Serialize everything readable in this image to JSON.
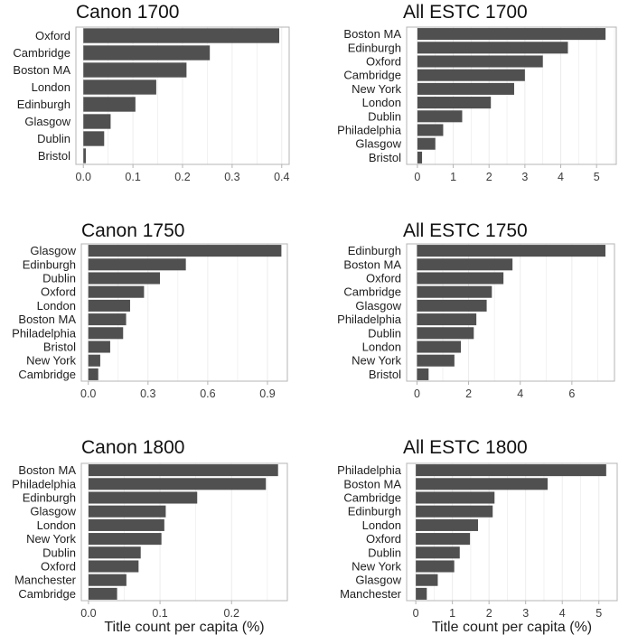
{
  "chart_data": [
    {
      "type": "bar",
      "orientation": "horizontal",
      "title": "Canon 1700",
      "xlabel": "",
      "ylabel": "",
      "categories": [
        "Oxford",
        "Cambridge",
        "Boston MA",
        "London",
        "Edinburgh",
        "Glasgow",
        "Dublin",
        "Bristol"
      ],
      "values": [
        0.395,
        0.255,
        0.208,
        0.147,
        0.105,
        0.055,
        0.042,
        0.005
      ],
      "xlim": [
        -0.015,
        0.415
      ],
      "xticks": [
        0.0,
        0.1,
        0.2,
        0.3,
        0.4
      ],
      "xtick_labels": [
        "0.0",
        "0.1",
        "0.2",
        "0.3",
        "0.4"
      ],
      "grid": true
    },
    {
      "type": "bar",
      "orientation": "horizontal",
      "title": "All ESTC 1700",
      "xlabel": "",
      "ylabel": "",
      "categories": [
        "Boston MA",
        "Edinburgh",
        "Oxford",
        "Cambridge",
        "New York",
        "London",
        "Dublin",
        "Philadelphia",
        "Glasgow",
        "Bristol"
      ],
      "values": [
        5.25,
        4.2,
        3.5,
        3.0,
        2.7,
        2.05,
        1.25,
        0.72,
        0.5,
        0.13
      ],
      "xlim": [
        -0.3,
        5.55
      ],
      "xticks": [
        0,
        1,
        2,
        3,
        4,
        5
      ],
      "xtick_labels": [
        "0",
        "1",
        "2",
        "3",
        "4",
        "5"
      ],
      "grid": true
    },
    {
      "type": "bar",
      "orientation": "horizontal",
      "title": "Canon 1750",
      "xlabel": "",
      "ylabel": "",
      "categories": [
        "Glasgow",
        "Edinburgh",
        "Dublin",
        "Oxford",
        "London",
        "Boston MA",
        "Philadelphia",
        "Bristol",
        "New York",
        "Cambridge"
      ],
      "values": [
        0.97,
        0.49,
        0.36,
        0.28,
        0.21,
        0.19,
        0.175,
        0.11,
        0.06,
        0.05
      ],
      "xlim": [
        -0.035,
        1.0
      ],
      "xticks": [
        0.0,
        0.3,
        0.6,
        0.9
      ],
      "xtick_labels": [
        "0.0",
        "0.3",
        "0.6",
        "0.9"
      ],
      "grid": true
    },
    {
      "type": "bar",
      "orientation": "horizontal",
      "title": "All ESTC 1750",
      "xlabel": "",
      "ylabel": "",
      "categories": [
        "Edinburgh",
        "Boston MA",
        "Oxford",
        "Cambridge",
        "Glasgow",
        "Philadelphia",
        "Dublin",
        "London",
        "New York",
        "Bristol"
      ],
      "values": [
        7.3,
        3.7,
        3.35,
        2.9,
        2.7,
        2.3,
        2.2,
        1.7,
        1.45,
        0.45
      ],
      "xlim": [
        -0.4,
        7.65
      ],
      "xticks": [
        0,
        2,
        4,
        6
      ],
      "xtick_labels": [
        "0",
        "2",
        "4",
        "6"
      ],
      "grid": true
    },
    {
      "type": "bar",
      "orientation": "horizontal",
      "title": "Canon 1800",
      "xlabel": "Title count per capita (%)",
      "ylabel": "",
      "categories": [
        "Boston MA",
        "Philadelphia",
        "Edinburgh",
        "Glasgow",
        "London",
        "New York",
        "Dublin",
        "Oxford",
        "Manchester",
        "Cambridge"
      ],
      "values": [
        0.265,
        0.248,
        0.152,
        0.108,
        0.106,
        0.102,
        0.073,
        0.07,
        0.053,
        0.04
      ],
      "xlim": [
        -0.01,
        0.278
      ],
      "xticks": [
        0.0,
        0.1,
        0.2
      ],
      "xtick_labels": [
        "0.0",
        "0.1",
        "0.2"
      ],
      "grid": true
    },
    {
      "type": "bar",
      "orientation": "horizontal",
      "title": "All ESTC 1800",
      "xlabel": "Title count per capita (%)",
      "ylabel": "",
      "categories": [
        "Philadelphia",
        "Boston MA",
        "Cambridge",
        "Edinburgh",
        "London",
        "Oxford",
        "Dublin",
        "New York",
        "Glasgow",
        "Manchester"
      ],
      "values": [
        5.2,
        3.6,
        2.15,
        2.1,
        1.7,
        1.48,
        1.2,
        1.05,
        0.6,
        0.3
      ],
      "xlim": [
        -0.25,
        5.5
      ],
      "xticks": [
        0,
        1,
        2,
        3,
        4,
        5
      ],
      "xtick_labels": [
        "0",
        "1",
        "2",
        "3",
        "4",
        "5"
      ],
      "grid": true
    }
  ],
  "colors": {
    "bar": "#505050",
    "panel_border": "#b4b4b4",
    "gridline": "#ececec",
    "text": "#1e1e1e",
    "tick_text": "#3c3c3c"
  }
}
